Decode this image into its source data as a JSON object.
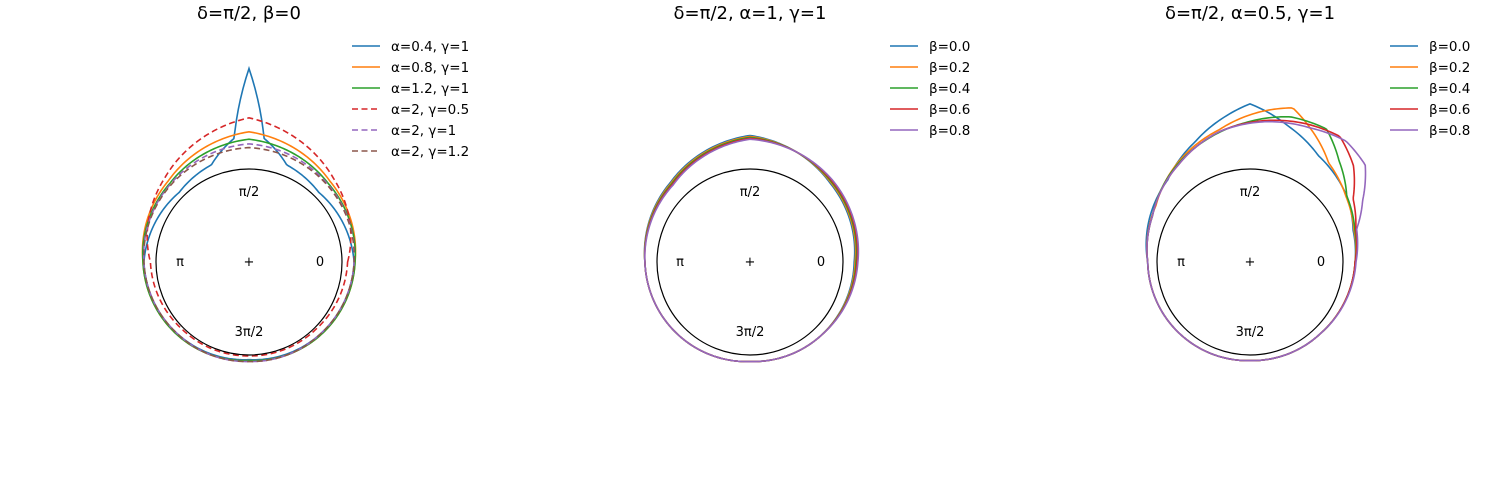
{
  "colors": {
    "C0": "#1f77b4",
    "C1": "#ff7f0e",
    "C2": "#2ca02c",
    "C3": "#d62728",
    "C4": "#9467bd",
    "C5": "#8c564b",
    "base_circle": "#000000"
  },
  "chart_data": [
    {
      "type": "line",
      "projection": "polar",
      "title": "δ=π/2, β=0",
      "xlabel": "",
      "ylabel": "",
      "grid": false,
      "legend_position": "upper-right-outside",
      "angle_labels": [
        "π/2",
        "π",
        "+",
        "0",
        "3π/2"
      ],
      "theta_range": [
        0,
        6.2832
      ],
      "r_range": [
        0,
        1.2
      ],
      "base_circle_r": 1.0,
      "series": [
        {
          "name": "α=0.4, γ=1",
          "color": "#1f77b4",
          "dash": "solid",
          "theta": [
            0,
            0.785,
            1.2,
            1.45,
            1.5708,
            1.69,
            1.94,
            2.356,
            3.1416,
            3.927,
            4.712,
            5.498,
            6.2832
          ],
          "r": [
            1.13,
            1.06,
            1.12,
            1.34,
            2.08,
            1.34,
            1.12,
            1.06,
            1.13,
            1.09,
            1.05,
            1.09,
            1.13
          ]
        },
        {
          "name": "α=0.8, γ=1",
          "color": "#ff7f0e",
          "dash": "solid",
          "theta": [
            0,
            0.785,
            1.5708,
            2.356,
            3.1416,
            3.927,
            4.712,
            5.498,
            6.2832
          ],
          "r": [
            1.14,
            1.23,
            1.4,
            1.23,
            1.14,
            1.1,
            1.06,
            1.1,
            1.14
          ]
        },
        {
          "name": "α=1.2, γ=1",
          "color": "#2ca02c",
          "dash": "solid",
          "theta": [
            0,
            0.785,
            1.5708,
            2.356,
            3.1416,
            3.927,
            4.712,
            5.498,
            6.2832
          ],
          "r": [
            1.14,
            1.2,
            1.32,
            1.2,
            1.14,
            1.1,
            1.06,
            1.1,
            1.14
          ]
        },
        {
          "name": "α=2, γ=0.5",
          "color": "#d62728",
          "dash": "dashed",
          "theta": [
            0,
            0.785,
            1.5708,
            2.356,
            3.1416,
            3.927,
            4.712,
            5.498,
            6.2832
          ],
          "r": [
            1.06,
            1.28,
            1.55,
            1.28,
            1.06,
            1.02,
            1.01,
            1.02,
            1.06
          ]
        },
        {
          "name": "α=2, γ=1",
          "color": "#9467bd",
          "dash": "dashed",
          "theta": [
            0,
            0.785,
            1.5708,
            2.356,
            3.1416,
            3.927,
            4.712,
            5.498,
            6.2832
          ],
          "r": [
            1.13,
            1.19,
            1.27,
            1.19,
            1.13,
            1.09,
            1.07,
            1.09,
            1.13
          ]
        },
        {
          "name": "α=2, γ=1.2",
          "color": "#8c564b",
          "dash": "dashed",
          "theta": [
            0,
            0.785,
            1.5708,
            2.356,
            3.1416,
            3.927,
            4.712,
            5.498,
            6.2832
          ],
          "r": [
            1.13,
            1.18,
            1.23,
            1.18,
            1.13,
            1.09,
            1.07,
            1.09,
            1.13
          ]
        }
      ]
    },
    {
      "type": "line",
      "projection": "polar",
      "title": "δ=π/2, α=1, γ=1",
      "xlabel": "",
      "ylabel": "",
      "grid": false,
      "legend_position": "upper-right-outside",
      "angle_labels": [
        "π/2",
        "π",
        "+",
        "0",
        "3π/2"
      ],
      "theta_range": [
        0,
        6.2832
      ],
      "r_range": [
        0,
        1.2
      ],
      "base_circle_r": 1.0,
      "series": [
        {
          "name": "β=0.0",
          "color": "#1f77b4",
          "dash": "solid",
          "theta": [
            0,
            0.785,
            1.5708,
            2.356,
            3.1416,
            3.927,
            4.712,
            5.498,
            6.2832
          ],
          "r": [
            1.12,
            1.21,
            1.36,
            1.21,
            1.13,
            1.1,
            1.07,
            1.1,
            1.12
          ]
        },
        {
          "name": "β=0.2",
          "color": "#ff7f0e",
          "dash": "solid",
          "theta": [
            0,
            0.785,
            1.5708,
            2.356,
            3.1416,
            3.927,
            4.712,
            5.498,
            6.2832
          ],
          "r": [
            1.13,
            1.22,
            1.35,
            1.2,
            1.13,
            1.1,
            1.07,
            1.1,
            1.13
          ]
        },
        {
          "name": "β=0.4",
          "color": "#2ca02c",
          "dash": "solid",
          "theta": [
            0,
            0.785,
            1.5708,
            2.356,
            3.1416,
            3.927,
            4.712,
            5.498,
            6.2832
          ],
          "r": [
            1.14,
            1.23,
            1.34,
            1.19,
            1.13,
            1.1,
            1.07,
            1.1,
            1.14
          ]
        },
        {
          "name": "β=0.6",
          "color": "#d62728",
          "dash": "solid",
          "theta": [
            0,
            0.785,
            1.5708,
            2.356,
            3.1416,
            3.927,
            4.712,
            5.498,
            6.2832
          ],
          "r": [
            1.15,
            1.24,
            1.33,
            1.18,
            1.13,
            1.1,
            1.07,
            1.1,
            1.15
          ]
        },
        {
          "name": "β=0.8",
          "color": "#9467bd",
          "dash": "solid",
          "theta": [
            0,
            0.785,
            1.5708,
            2.356,
            3.1416,
            3.927,
            4.712,
            5.498,
            6.2832
          ],
          "r": [
            1.16,
            1.25,
            1.32,
            1.17,
            1.13,
            1.1,
            1.07,
            1.1,
            1.16
          ]
        }
      ]
    },
    {
      "type": "line",
      "projection": "polar",
      "title": "δ=π/2, α=0.5, γ=1",
      "xlabel": "",
      "ylabel": "",
      "grid": false,
      "legend_position": "upper-right-outside",
      "angle_labels": [
        "π/2",
        "π",
        "+",
        "0",
        "3π/2"
      ],
      "theta_range": [
        0,
        6.2832
      ],
      "r_range": [
        0,
        1.2
      ],
      "base_circle_r": 1.0,
      "series": [
        {
          "name": "β=0.0",
          "color": "#1f77b4",
          "dash": "solid",
          "theta": [
            0,
            0.3,
            0.6,
            1.0,
            1.3,
            1.5708,
            1.75,
            2.0,
            2.356,
            3.1416,
            3.927,
            4.712,
            5.498,
            6.2832
          ],
          "r": [
            1.13,
            1.16,
            1.26,
            1.36,
            1.52,
            1.7,
            1.58,
            1.42,
            1.25,
            1.1,
            1.08,
            1.06,
            1.08,
            1.13
          ]
        },
        {
          "name": "β=0.2",
          "color": "#ff7f0e",
          "dash": "solid",
          "theta": [
            0,
            0.3,
            0.6,
            0.9,
            1.15,
            1.3,
            1.5,
            1.8,
            2.2,
            2.6,
            3.1416,
            3.927,
            4.712,
            5.498,
            6.2832
          ],
          "r": [
            1.13,
            1.17,
            1.25,
            1.36,
            1.58,
            1.72,
            1.62,
            1.46,
            1.32,
            1.18,
            1.1,
            1.08,
            1.06,
            1.08,
            1.13
          ]
        },
        {
          "name": "β=0.4",
          "color": "#2ca02c",
          "dash": "solid",
          "theta": [
            0,
            0.3,
            0.6,
            0.85,
            1.05,
            1.3,
            1.6,
            1.9,
            2.3,
            2.7,
            3.1416,
            3.927,
            4.712,
            5.498,
            6.2832
          ],
          "r": [
            1.13,
            1.18,
            1.26,
            1.45,
            1.65,
            1.62,
            1.5,
            1.4,
            1.28,
            1.16,
            1.1,
            1.08,
            1.06,
            1.08,
            1.13
          ]
        },
        {
          "name": "β=0.6",
          "color": "#d62728",
          "dash": "solid",
          "theta": [
            0,
            0.3,
            0.55,
            0.75,
            0.95,
            1.2,
            1.5,
            1.8,
            2.2,
            2.7,
            3.1416,
            3.927,
            4.712,
            5.498,
            6.2832
          ],
          "r": [
            1.13,
            1.19,
            1.3,
            1.52,
            1.66,
            1.6,
            1.52,
            1.44,
            1.3,
            1.16,
            1.1,
            1.08,
            1.06,
            1.08,
            1.13
          ]
        },
        {
          "name": "β=0.8",
          "color": "#9467bd",
          "dash": "solid",
          "theta": [
            0,
            0.3,
            0.5,
            0.7,
            0.9,
            1.15,
            1.45,
            1.8,
            2.2,
            2.7,
            3.1416,
            3.927,
            4.712,
            5.498,
            6.2832
          ],
          "r": [
            1.14,
            1.2,
            1.38,
            1.62,
            1.66,
            1.58,
            1.52,
            1.44,
            1.3,
            1.16,
            1.1,
            1.08,
            1.06,
            1.08,
            1.14
          ]
        }
      ]
    }
  ]
}
